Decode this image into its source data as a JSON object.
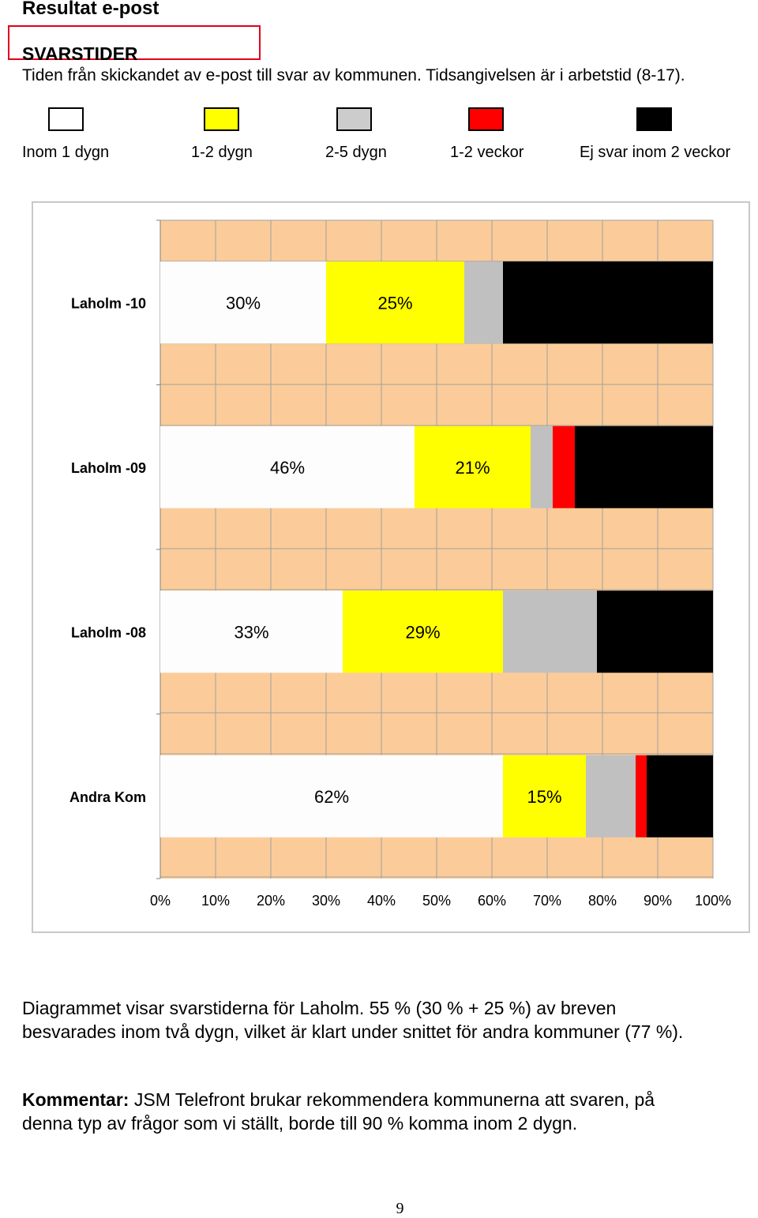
{
  "page": {
    "title": "Resultat e-post",
    "section_title": "SVARSTIDER",
    "section_desc": "Tiden från skickandet av e-post till svar av kommunen. Tidsangivelsen är i arbetstid (8-17).",
    "paragraph_line1": "Diagrammet visar svarstiderna för Laholm. 55 % (30 % + 25 %) av breven",
    "paragraph_line2": "besvarades inom två dygn, vilket är klart under snittet för andra kommuner (77 %).",
    "comment_label": "Kommentar:",
    "comment_line1_rest": " JSM Telefront brukar rekommendera kommunerna att svaren, på",
    "comment_line2": "denna typ av frågor som vi ställt, borde till 90 % komma inom 2 dygn.",
    "page_number": "9"
  },
  "legend": [
    {
      "label": "Inom 1 dygn",
      "color": "#ffffff"
    },
    {
      "label": "1-2 dygn",
      "color": "#ffff00"
    },
    {
      "label": "2-5 dygn",
      "color": "#cccccc"
    },
    {
      "label": "1-2 veckor",
      "color": "#ff0000"
    },
    {
      "label": "Ej svar inom 2 veckor",
      "color": "#000000"
    }
  ],
  "chart_data": {
    "type": "bar",
    "orientation": "horizontal",
    "stacked": true,
    "categories": [
      "Laholm -10",
      "Laholm -09",
      "Laholm -08",
      "Andra Kom"
    ],
    "series": [
      {
        "name": "Inom 1 dygn",
        "color": "#fdfdfd",
        "values": [
          30,
          46,
          33,
          62
        ],
        "labels": [
          "30%",
          "46%",
          "33%",
          "62%"
        ]
      },
      {
        "name": "1-2 dygn",
        "color": "#ffff00",
        "values": [
          25,
          21,
          29,
          15
        ],
        "labels": [
          "25%",
          "21%",
          "29%",
          "15%"
        ]
      },
      {
        "name": "2-5 dygn",
        "color": "#c0c0c0",
        "values": [
          7,
          4,
          17,
          9
        ],
        "labels": [
          "",
          "",
          "",
          ""
        ]
      },
      {
        "name": "1-2 veckor",
        "color": "#ff0000",
        "values": [
          0,
          4,
          0,
          2
        ],
        "labels": [
          "",
          "",
          "",
          ""
        ]
      },
      {
        "name": "Ej svar inom 2 veckor",
        "color": "#000000",
        "values": [
          38,
          25,
          21,
          12
        ],
        "labels": [
          "",
          "",
          "",
          ""
        ]
      }
    ],
    "xlim": [
      0,
      100
    ],
    "xticks": [
      "0%",
      "10%",
      "20%",
      "30%",
      "40%",
      "50%",
      "60%",
      "70%",
      "80%",
      "90%",
      "100%"
    ],
    "plot_background": "#fbcc99",
    "grid": true
  }
}
